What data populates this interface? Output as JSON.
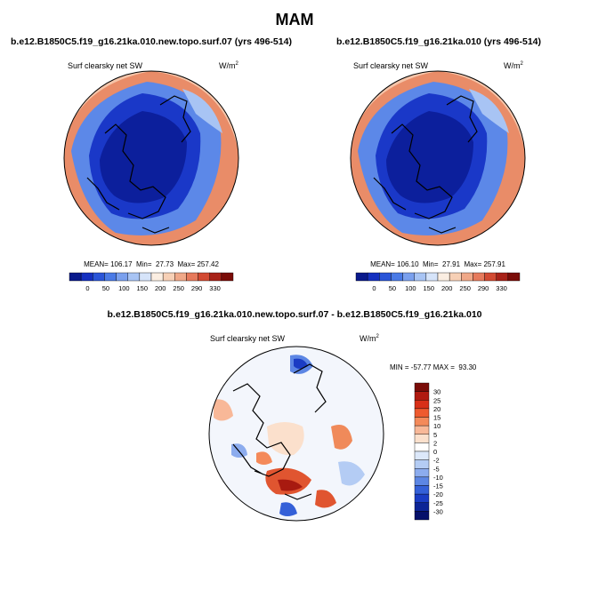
{
  "page_title": "MAM",
  "chart_data": [
    {
      "type": "polar-contour-map",
      "title": "b.e12.B1850C5.f19_g16.21ka.010.new.topo.surf.07 (yrs 496-514)",
      "subtitle": "Surf clearsky net SW",
      "units_base": "W/m",
      "units_exp": "2",
      "stats_text": "MEAN= 106.17  Min=  27.73  Max= 257.42",
      "stats": {
        "mean": 106.17,
        "min": 27.73,
        "max": 257.42
      },
      "colorbar": {
        "orientation": "horizontal",
        "levels": [
          0,
          50,
          100,
          150,
          200,
          250,
          290,
          330
        ],
        "level_labels": [
          "0",
          "50",
          "100",
          "150",
          "200",
          "250",
          "290",
          "330"
        ],
        "colors": [
          "#0a1a8c",
          "#1530c0",
          "#2a55d8",
          "#4a7ae6",
          "#7aa0ee",
          "#a8c4f4",
          "#d6e4fa",
          "#fbeee2",
          "#f7d0b6",
          "#f0a888",
          "#e67a5c",
          "#d24a32",
          "#a82218",
          "#7a0c08"
        ]
      }
    },
    {
      "type": "polar-contour-map",
      "title": "b.e12.B1850C5.f19_g16.21ka.010 (yrs 496-514)",
      "subtitle": "Surf clearsky net SW",
      "units_base": "W/m",
      "units_exp": "2",
      "stats_text": "MEAN= 106.10  Min=  27.91  Max= 257.91",
      "stats": {
        "mean": 106.1,
        "min": 27.91,
        "max": 257.91
      },
      "colorbar": {
        "orientation": "horizontal",
        "levels": [
          0,
          50,
          100,
          150,
          200,
          250,
          290,
          330
        ],
        "level_labels": [
          "0",
          "50",
          "100",
          "150",
          "200",
          "250",
          "290",
          "330"
        ],
        "colors": [
          "#0a1a8c",
          "#1530c0",
          "#2a55d8",
          "#4a7ae6",
          "#7aa0ee",
          "#a8c4f4",
          "#d6e4fa",
          "#fbeee2",
          "#f7d0b6",
          "#f0a888",
          "#e67a5c",
          "#d24a32",
          "#a82218",
          "#7a0c08"
        ]
      }
    },
    {
      "type": "polar-contour-map",
      "title": "b.e12.B1850C5.f19_g16.21ka.010.new.topo.surf.07 - b.e12.B1850C5.f19_g16.21ka.010",
      "subtitle": "Surf clearsky net SW",
      "units_base": "W/m",
      "units_exp": "2",
      "stats_text": "MIN = -57.77 MAX =  93.30",
      "stats": {
        "min": -57.77,
        "max": 93.3
      },
      "colorbar": {
        "orientation": "vertical",
        "level_labels": [
          "30",
          "25",
          "20",
          "15",
          "10",
          "5",
          "2",
          "0",
          "-2",
          "-5",
          "-10",
          "-15",
          "-20",
          "-25",
          "-30"
        ],
        "colors": [
          "#7a0c08",
          "#b01a10",
          "#d83018",
          "#ee5a2e",
          "#f48a5a",
          "#f8b898",
          "#fbe0cc",
          "#ffffff",
          "#dce8fa",
          "#b4ccf4",
          "#8cacee",
          "#5c86e4",
          "#3460d8",
          "#1a3cc4",
          "#0c2496",
          "#06106a"
        ]
      }
    }
  ]
}
